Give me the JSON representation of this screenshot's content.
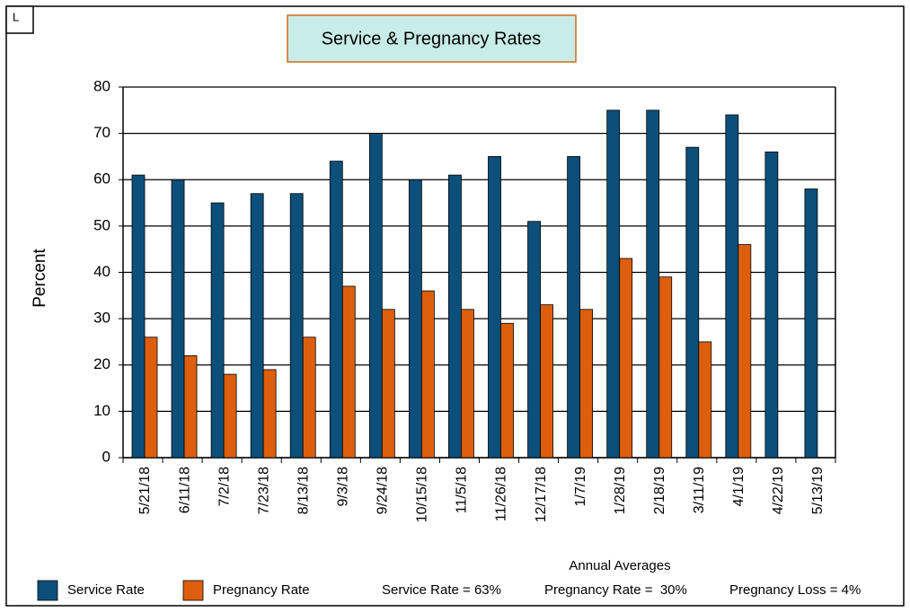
{
  "chart_data": {
    "type": "bar",
    "title": "Service & Pregnancy Rates",
    "corner_label": "L",
    "y_label": "Percent",
    "categories": [
      "5/21/18",
      "6/11/18",
      "7/2/18",
      "7/23/18",
      "8/13/18",
      "9/3/18",
      "9/24/18",
      "10/15/18",
      "11/5/18",
      "11/26/18",
      "12/17/18",
      "1/7/19",
      "1/28/19",
      "2/18/19",
      "3/11/19",
      "4/1/19",
      "4/22/19",
      "5/13/19"
    ],
    "series": [
      {
        "name": "Service Rate",
        "color": "#0c4f7a",
        "values": [
          61,
          60,
          55,
          57,
          57,
          64,
          70,
          60,
          61,
          65,
          51,
          65,
          75,
          75,
          67,
          74,
          66,
          58
        ]
      },
      {
        "name": "Pregnancy Rate",
        "color": "#dd5f0e",
        "values": [
          26,
          22,
          18,
          19,
          26,
          37,
          32,
          36,
          32,
          29,
          33,
          32,
          43,
          39,
          25,
          46,
          null,
          null
        ]
      }
    ],
    "ylim": [
      0,
      80
    ],
    "yticks": [
      0,
      10,
      20,
      30,
      40,
      50,
      60,
      70,
      80
    ],
    "grid": true,
    "legend": "bottom-left",
    "annotations": {
      "heading": "Annual Averages",
      "items": [
        "Service Rate = 63%",
        "Pregnancy Rate =  30%",
        "Pregnancy Loss = 4%"
      ]
    }
  }
}
